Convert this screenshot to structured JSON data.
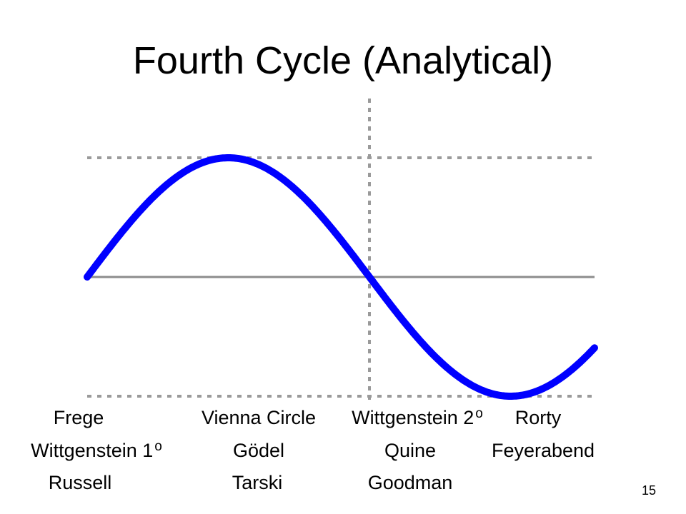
{
  "title": "Fourth Cycle (Analytical)",
  "colors": {
    "wave": "#0000ff",
    "axis": "#8c8c8c",
    "gridline": "#9a9a9a"
  },
  "labels": {
    "row1": [
      "Frege",
      "Vienna Circle",
      "Wittgenstein 2",
      "Rorty"
    ],
    "row1_sup": "o",
    "row2": [
      "Wittgenstein 1",
      "Gödel",
      "Quine",
      "Feyerabend"
    ],
    "row2_sup": "o",
    "row3": [
      "Russell",
      "Tarski",
      "Goodman"
    ]
  },
  "page_number": "15"
}
